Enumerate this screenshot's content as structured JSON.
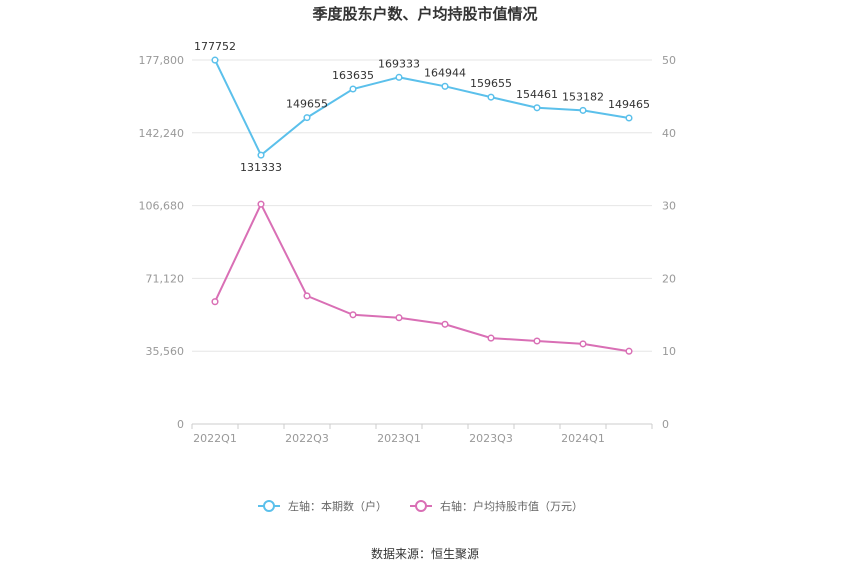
{
  "chart_data": {
    "type": "line",
    "title": "季度股东户数、户均持股市值情况",
    "x": [
      "2022Q1",
      "2022Q2",
      "2022Q3",
      "2022Q4",
      "2023Q1",
      "2023Q2",
      "2023Q3",
      "2023Q4",
      "2024Q1",
      "2024Q2"
    ],
    "x_tick_labels": [
      "2022Q1",
      "",
      "2022Q3",
      "",
      "2023Q1",
      "",
      "2023Q3",
      "",
      "2024Q1",
      ""
    ],
    "left_axis": {
      "ylim": [
        0,
        177800
      ],
      "ticks": [
        "0",
        "35,560",
        "71,120",
        "106,680",
        "142,240",
        "177,800"
      ]
    },
    "right_axis": {
      "ylim": [
        0,
        50
      ],
      "ticks": [
        "0",
        "10",
        "20",
        "30",
        "40",
        "50"
      ]
    },
    "series": [
      {
        "name": "左轴：本期数（户）",
        "axis": "left",
        "color": "#5bc0eb",
        "values": [
          177752,
          131333,
          149655,
          163635,
          169333,
          164944,
          159655,
          154461,
          153182,
          149465
        ],
        "labels": [
          "177752",
          "131333",
          "149655",
          "163635",
          "169333",
          "164944",
          "159655",
          "154461",
          "153182",
          "149465"
        ]
      },
      {
        "name": "右轴：户均持股市值（万元）",
        "axis": "right",
        "color": "#d96fb5",
        "values": [
          16.8,
          30.2,
          17.6,
          15.0,
          14.6,
          13.7,
          11.8,
          11.4,
          11.0,
          10.0
        ]
      }
    ],
    "legend_position": "bottom",
    "grid": true
  },
  "source": "数据来源：恒生聚源"
}
